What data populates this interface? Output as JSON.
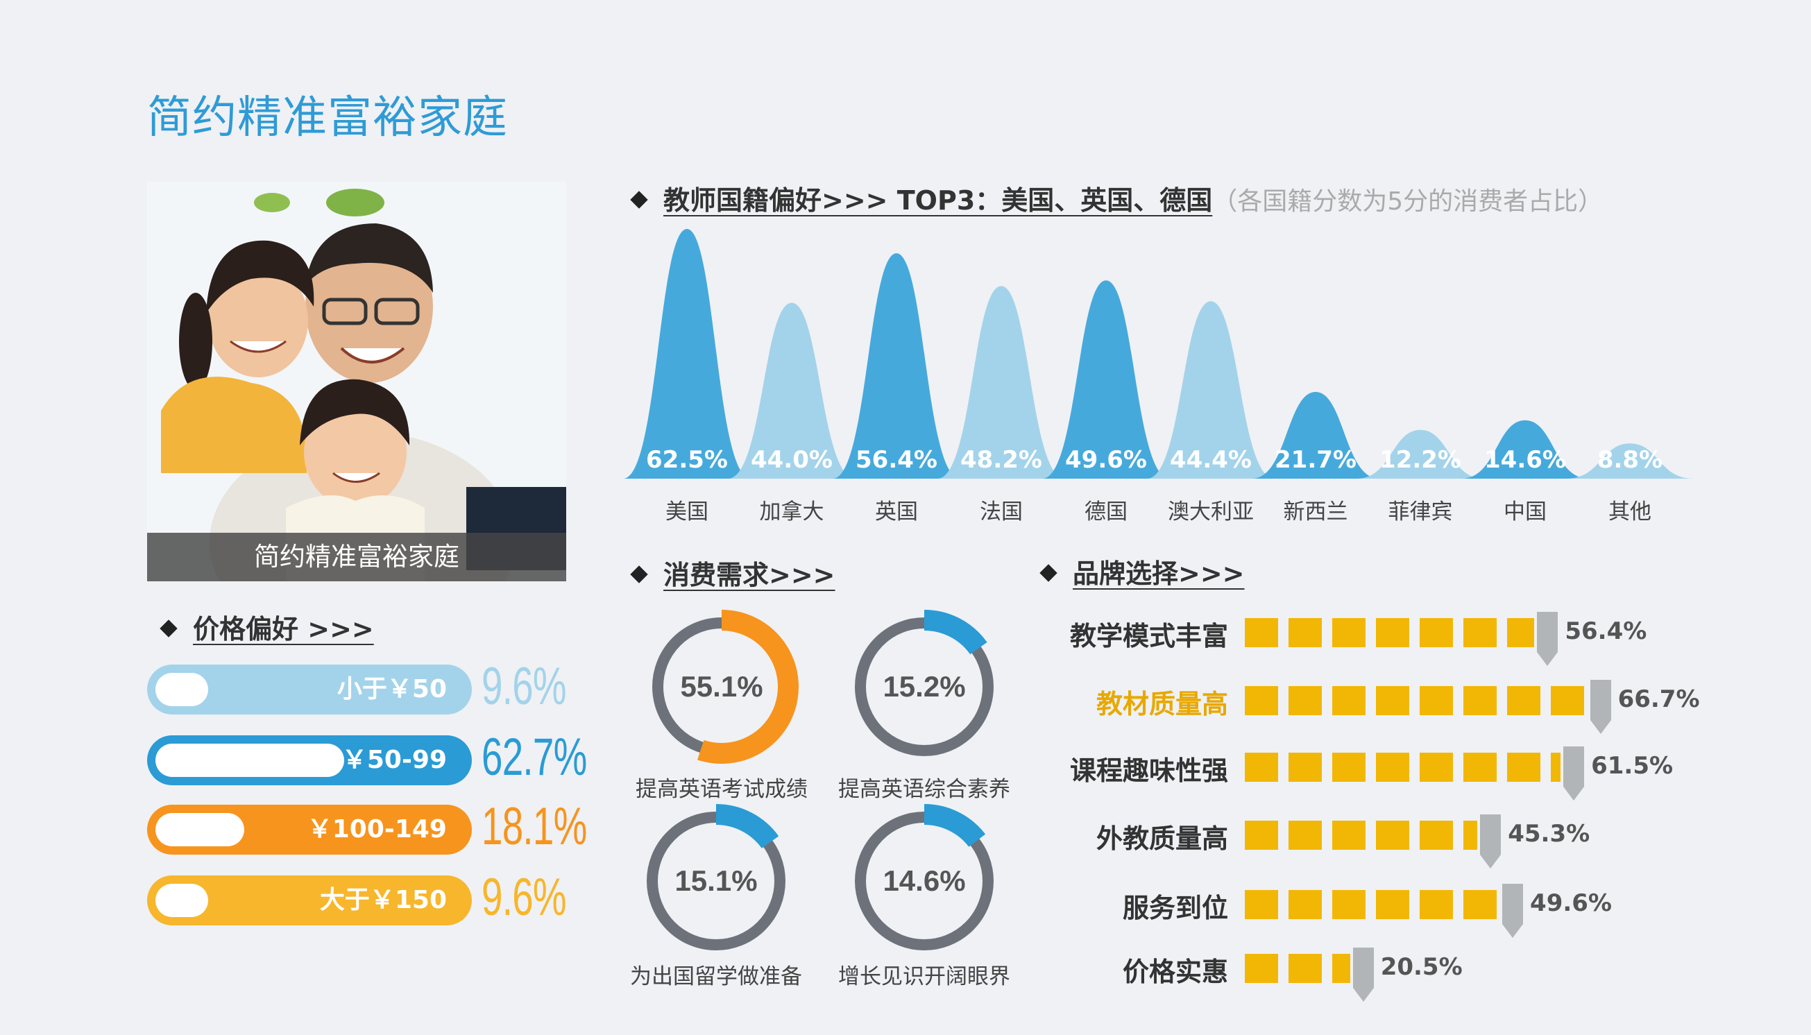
{
  "page": {
    "title": "简约精准富裕家庭"
  },
  "photo": {
    "caption": "简约精准富裕家庭"
  },
  "colors": {
    "dark_blue": "#46a9dc",
    "light_blue": "#a3d3ea",
    "orange": "#f7941d",
    "yellow": "#f7b62b",
    "gray": "#6d727a",
    "brand_yellow": "#f2b705"
  },
  "nationality": {
    "heading": "教师国籍偏好>>> TOP3：美国、英国、德国",
    "note": "（各国籍分数为5分的消费者占比）"
  },
  "price": {
    "heading": "价格偏好 >>>"
  },
  "demand": {
    "heading": "消费需求>>>"
  },
  "brand": {
    "heading": "品牌选择>>>"
  },
  "chart_data": [
    {
      "type": "area",
      "title": "教师国籍偏好>>> TOP3：美国、英国、德国",
      "subtitle": "（各国籍分数为5分的消费者占比）",
      "categories": [
        "美国",
        "加拿大",
        "英国",
        "法国",
        "德国",
        "澳大利亚",
        "新西兰",
        "菲律宾",
        "中国",
        "其他"
      ],
      "values": [
        62.5,
        44.0,
        56.4,
        48.2,
        49.6,
        44.4,
        21.7,
        12.2,
        14.6,
        8.8
      ],
      "value_labels": [
        "62.5%",
        "44.0%",
        "56.4%",
        "48.2%",
        "49.6%",
        "44.4%",
        "21.7%",
        "12.2%",
        "14.6%",
        "8.8%"
      ],
      "highlight": [
        true,
        false,
        true,
        false,
        true,
        false,
        true,
        false,
        true,
        false
      ]
    },
    {
      "type": "bar",
      "title": "价格偏好 >>>",
      "categories": [
        "小于￥50",
        "￥50-99",
        "￥100-149",
        "大于￥150"
      ],
      "values": [
        9.6,
        62.7,
        18.1,
        9.6
      ],
      "value_labels": [
        "9.6%",
        "62.7%",
        "18.1%",
        "9.6%"
      ],
      "colors": [
        "#a3d3ea",
        "#2a9bd5",
        "#f7941d",
        "#f7b62b"
      ]
    },
    {
      "type": "pie",
      "title": "消费需求>>>",
      "categories": [
        "提高英语考试成绩",
        "提高英语综合素养",
        "为出国留学做准备",
        "增长见识开阔眼界"
      ],
      "values": [
        55.1,
        15.2,
        15.1,
        14.6
      ],
      "value_labels": [
        "55.1%",
        "15.2%",
        "15.1%",
        "14.6%"
      ],
      "colors": [
        "#f7941d",
        "#2a9bd5",
        "#2a9bd5",
        "#2a9bd5"
      ]
    },
    {
      "type": "bar",
      "title": "品牌选择>>>",
      "categories": [
        "教学模式丰富",
        "教材质量高",
        "课程趣味性强",
        "外教质量高",
        "服务到位",
        "价格实惠"
      ],
      "values": [
        56.4,
        66.7,
        61.5,
        45.3,
        49.6,
        20.5
      ],
      "value_labels": [
        "56.4%",
        "66.7%",
        "61.5%",
        "45.3%",
        "49.6%",
        "20.5%"
      ],
      "highlight_index": 1
    }
  ]
}
